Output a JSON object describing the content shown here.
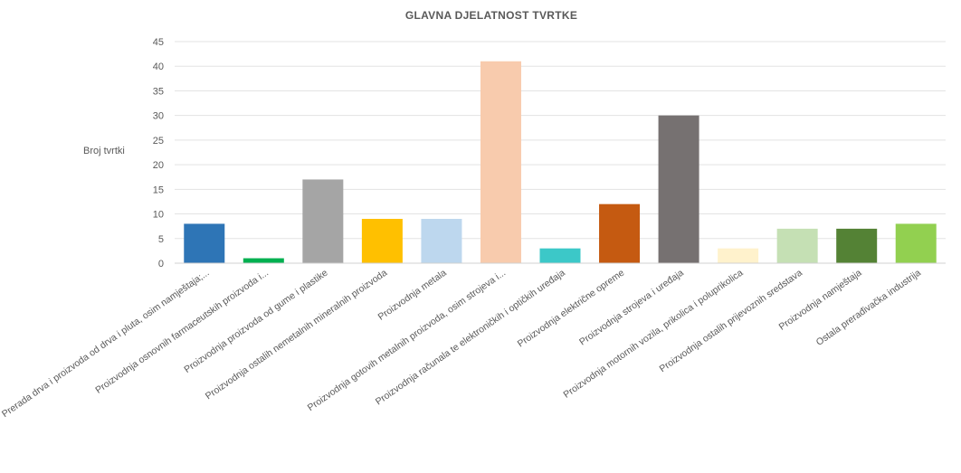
{
  "chart_data": {
    "type": "bar",
    "title": "GLAVNA DJELATNOST TVRTKE",
    "ylabel": "Broj tvrtki",
    "xlabel": "",
    "ylim": [
      0,
      45
    ],
    "yticks": [
      0,
      5,
      10,
      15,
      20,
      25,
      30,
      35,
      40,
      45
    ],
    "grid": true,
    "legend": "none",
    "categories": [
      "Prerada drva i proizvoda od drva i pluta, osim namještaja;...",
      "Proizvodnja osnovnih farmaceutskih proizvoda i...",
      "Proizvodnja proizvoda od gume i plastike",
      "Proizvodnja ostalih nemetalnih mineralnih proizvoda",
      "Proizvodnja metala",
      "Proizvodnja gotovih metalnih proizvoda, osim strojeva i...",
      "Proizvodnja računala te elektroničkih i optičkih uređaja",
      "Proizvodnja električne opreme",
      "Proizvodnja strojeva i uređaja",
      "Proizvodnja motornih vozila, prikolica i poluprikolica",
      "Proizvodnja ostalih prijevoznih sredstava",
      "Proizvodnja namještaja",
      "Ostala prerađivačka industrija"
    ],
    "values": [
      8,
      1,
      17,
      9,
      9,
      41,
      3,
      12,
      30,
      3,
      7,
      7,
      8
    ],
    "colors": [
      "#2e75b6",
      "#00b050",
      "#a5a5a5",
      "#ffc000",
      "#bdd7ee",
      "#f8cbad",
      "#3cc8c8",
      "#c55a11",
      "#767171",
      "#fff2cc",
      "#c5e0b4",
      "#548235",
      "#92d050"
    ]
  }
}
